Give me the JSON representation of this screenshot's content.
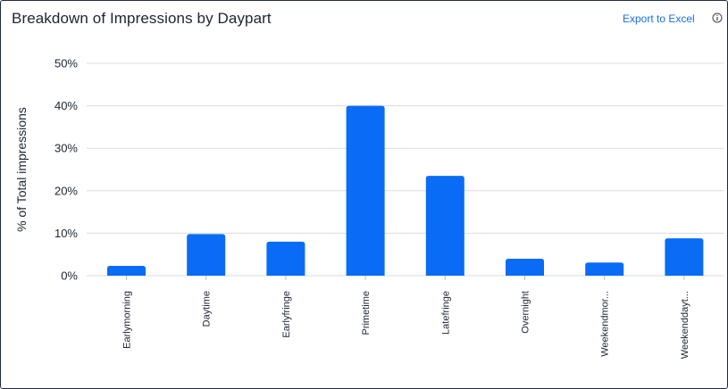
{
  "header": {
    "title": "Breakdown of Impressions by Daypart",
    "export_label": "Export to Excel",
    "info_icon": "info-circle-icon"
  },
  "colors": {
    "bar": "#0a6cf5",
    "grid": "#d9dce1",
    "link": "#1a6fe0",
    "text": "#1c2433"
  },
  "chart_data": {
    "type": "bar",
    "title": "",
    "ylabel": "% of Total impressions",
    "xlabel": "",
    "ylim": [
      0,
      50
    ],
    "yticks": [
      0,
      10,
      20,
      30,
      40,
      50
    ],
    "ytick_labels": [
      "0%",
      "10%",
      "20%",
      "30%",
      "40%",
      "50%"
    ],
    "categories": [
      "Earlymorning",
      "Daytime",
      "Earlyfringe",
      "Primetime",
      "Latefringe",
      "Overnight",
      "Weekendmor...",
      "Weekenddayt..."
    ],
    "values": [
      2.3,
      9.8,
      8.0,
      40.0,
      23.5,
      4.0,
      3.1,
      8.8
    ],
    "grid": true,
    "legend": "none"
  }
}
